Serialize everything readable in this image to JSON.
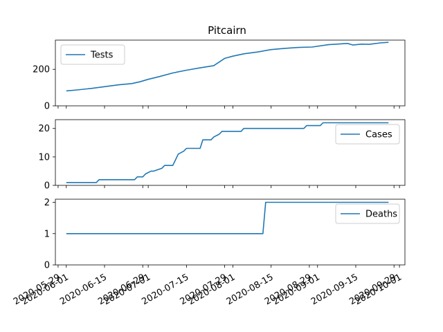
{
  "figure": {
    "title": "Pitcairn",
    "background": "#ffffff",
    "line_color": "#1f77b4"
  },
  "chart_data": [
    {
      "type": "line",
      "series": [
        {
          "name": "Tests",
          "x": [
            "2020-06-01",
            "2020-06-05",
            "2020-06-10",
            "2020-06-15",
            "2020-06-20",
            "2020-06-25",
            "2020-06-28",
            "2020-07-01",
            "2020-07-05",
            "2020-07-10",
            "2020-07-15",
            "2020-07-20",
            "2020-07-25",
            "2020-07-27",
            "2020-07-29",
            "2020-08-01",
            "2020-08-05",
            "2020-08-10",
            "2020-08-15",
            "2020-08-20",
            "2020-08-25",
            "2020-08-30",
            "2020-09-05",
            "2020-09-10",
            "2020-09-12",
            "2020-09-14",
            "2020-09-17",
            "2020-09-20",
            "2020-09-24",
            "2020-09-27"
          ],
          "values": [
            82,
            87,
            95,
            105,
            115,
            122,
            132,
            145,
            160,
            180,
            195,
            208,
            220,
            240,
            260,
            272,
            285,
            295,
            308,
            315,
            320,
            322,
            335,
            340,
            342,
            333,
            338,
            337,
            345,
            348
          ]
        }
      ],
      "yticks": [
        "0",
        "200"
      ],
      "ylim": [
        0,
        360
      ],
      "legend": "upper left"
    },
    {
      "type": "line",
      "series": [
        {
          "name": "Cases",
          "x": [
            "2020-06-01",
            "2020-06-12",
            "2020-06-13",
            "2020-06-26",
            "2020-06-27",
            "2020-06-29",
            "2020-06-30",
            "2020-07-02",
            "2020-07-03",
            "2020-07-06",
            "2020-07-07",
            "2020-07-10",
            "2020-07-11",
            "2020-07-12",
            "2020-07-14",
            "2020-07-15",
            "2020-07-20",
            "2020-07-21",
            "2020-07-24",
            "2020-07-25",
            "2020-07-27",
            "2020-07-28",
            "2020-08-04",
            "2020-08-05",
            "2020-08-27",
            "2020-08-28",
            "2020-09-02",
            "2020-09-03",
            "2020-09-27"
          ],
          "values": [
            1,
            1,
            2,
            2,
            3,
            3,
            4,
            5,
            5,
            6,
            7,
            7,
            9,
            11,
            12,
            13,
            13,
            16,
            16,
            17,
            18,
            19,
            19,
            20,
            20,
            21,
            21,
            22,
            22
          ]
        }
      ],
      "yticks": [
        "0",
        "10",
        "20"
      ],
      "ylim": [
        0,
        23.1
      ],
      "legend": "upper right"
    },
    {
      "type": "line",
      "series": [
        {
          "name": "Deaths",
          "x": [
            "2020-06-01",
            "2020-08-12",
            "2020-08-13",
            "2020-09-27"
          ],
          "values": [
            1,
            1,
            2,
            2
          ]
        }
      ],
      "yticks": [
        "0",
        "1",
        "2"
      ],
      "ylim": [
        0,
        2.1
      ],
      "legend": "upper right"
    }
  ],
  "xaxis": {
    "range": [
      "2020-05-28",
      "2020-10-03"
    ],
    "tick_labels": [
      "2020-05-29",
      "2020-06-01",
      "2020-06-15",
      "2020-06-29",
      "2020-07-01",
      "2020-07-15",
      "2020-07-29",
      "2020-08-01",
      "2020-08-15",
      "2020-08-29",
      "2020-09-01",
      "2020-09-15",
      "2020-09-29",
      "2020-10-01"
    ]
  }
}
